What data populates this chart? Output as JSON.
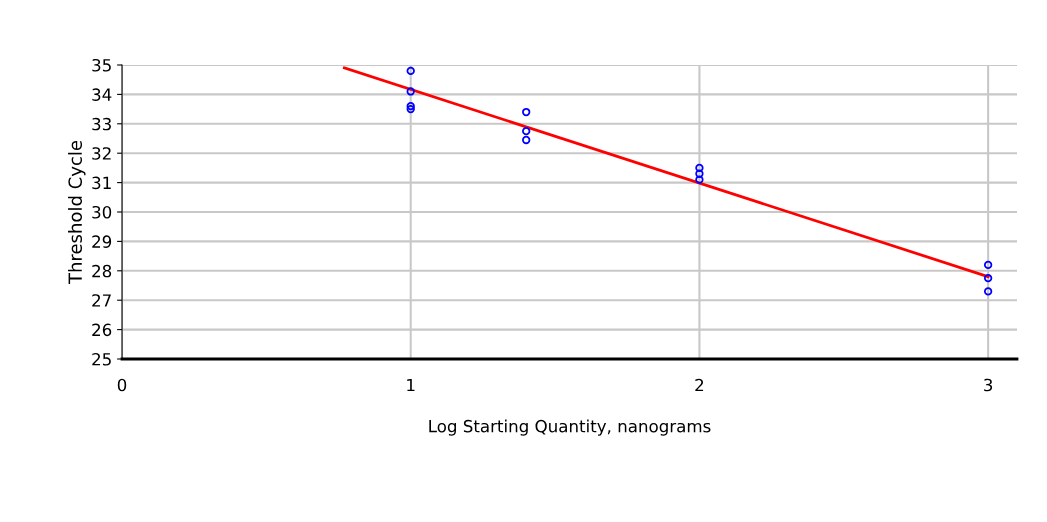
{
  "chart_data": {
    "type": "scatter",
    "xlabel": "Log Starting Quantity, nanograms",
    "ylabel": "Threshold Cycle",
    "xlim": [
      0,
      3.1
    ],
    "xticks": [
      0,
      1,
      2,
      3
    ],
    "ylim": [
      25,
      35
    ],
    "yticks": [
      25,
      26,
      27,
      28,
      29,
      30,
      31,
      32,
      33,
      34,
      35
    ],
    "grid": true,
    "series": [
      {
        "marker": "circle",
        "color": "#0000ff",
        "x": [
          1,
          1,
          1,
          1,
          1.4,
          1.4,
          1.4,
          2,
          2,
          2,
          3,
          3,
          3
        ],
        "values": [
          34.8,
          34.1,
          33.6,
          33.5,
          33.4,
          32.75,
          32.45,
          31.5,
          31.3,
          31.1,
          28.2,
          27.75,
          27.3
        ]
      },
      {
        "type": "line",
        "color": "#ff0000",
        "marker": "none",
        "x": [
          0.77,
          3
        ],
        "values": [
          34.9,
          27.8
        ]
      }
    ]
  }
}
